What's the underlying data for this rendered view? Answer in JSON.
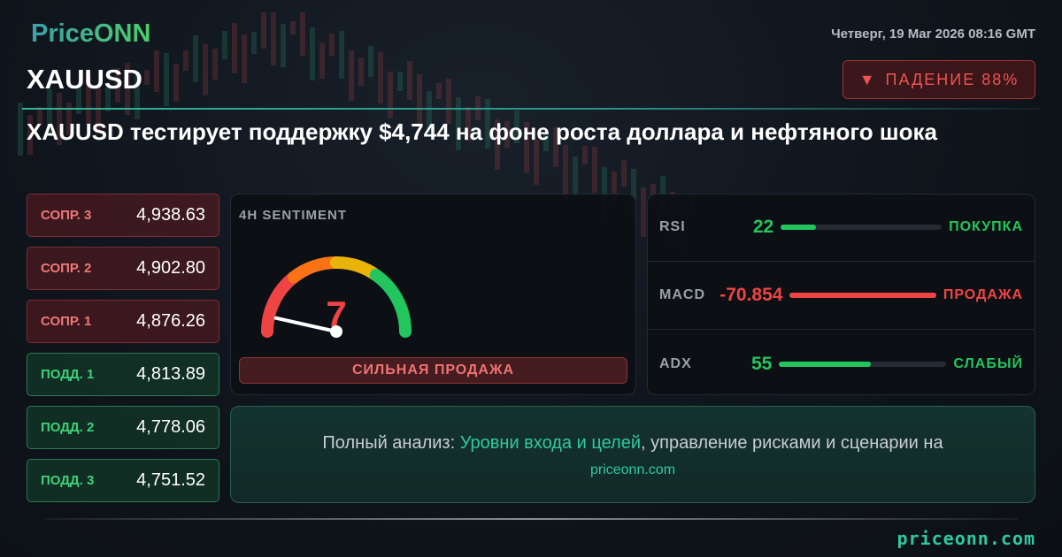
{
  "header": {
    "logo": "PriceONN",
    "symbol": "XAUUSD",
    "headline": "XAUUSD тестирует поддержку $4,744 на фоне роста доллара и нефтяного шока",
    "date": "Четверг, 19 Mar 2026 08:16 GMT",
    "trend": {
      "icon": "triangle-down-icon",
      "arrow": "▼",
      "label": "ПАДЕНИЕ 88%",
      "color": "#ef5350"
    }
  },
  "levels": [
    {
      "label": "СОПР. 3",
      "value": "4,938.63",
      "type": "resistance"
    },
    {
      "label": "СОПР. 2",
      "value": "4,902.80",
      "type": "resistance"
    },
    {
      "label": "СОПР. 1",
      "value": "4,876.26",
      "type": "resistance"
    },
    {
      "label": "ПОДД. 1",
      "value": "4,813.89",
      "type": "support"
    },
    {
      "label": "ПОДД. 2",
      "value": "4,778.06",
      "type": "support"
    },
    {
      "label": "ПОДД. 3",
      "value": "4,751.52",
      "type": "support"
    }
  ],
  "sentiment": {
    "title": "4H SENTIMENT",
    "value": "7",
    "scale_max": 100,
    "label": "СИЛЬНАЯ ПРОДАЖА",
    "colors": [
      "#ef4444",
      "#f97316",
      "#eab308",
      "#22c55e"
    ]
  },
  "indicators": [
    {
      "name": "RSI",
      "value": "22",
      "fill_percent": 22,
      "signal": "ПОКУПКА",
      "color": "#22c55e"
    },
    {
      "name": "MACD",
      "value": "-70.854",
      "fill_percent": 100,
      "signal": "ПРОДАЖА",
      "color": "#ef4444"
    },
    {
      "name": "ADX",
      "value": "55",
      "fill_percent": 55,
      "signal": "СЛАБЫЙ",
      "color": "#22c55e"
    }
  ],
  "cta": {
    "prefix": "Полный анализ: ",
    "highlight": "Уровни входа и целей",
    "suffix": ", управление рисками и сценарии на",
    "site": "priceonn.com"
  },
  "footer": {
    "site": "priceonn.com"
  }
}
